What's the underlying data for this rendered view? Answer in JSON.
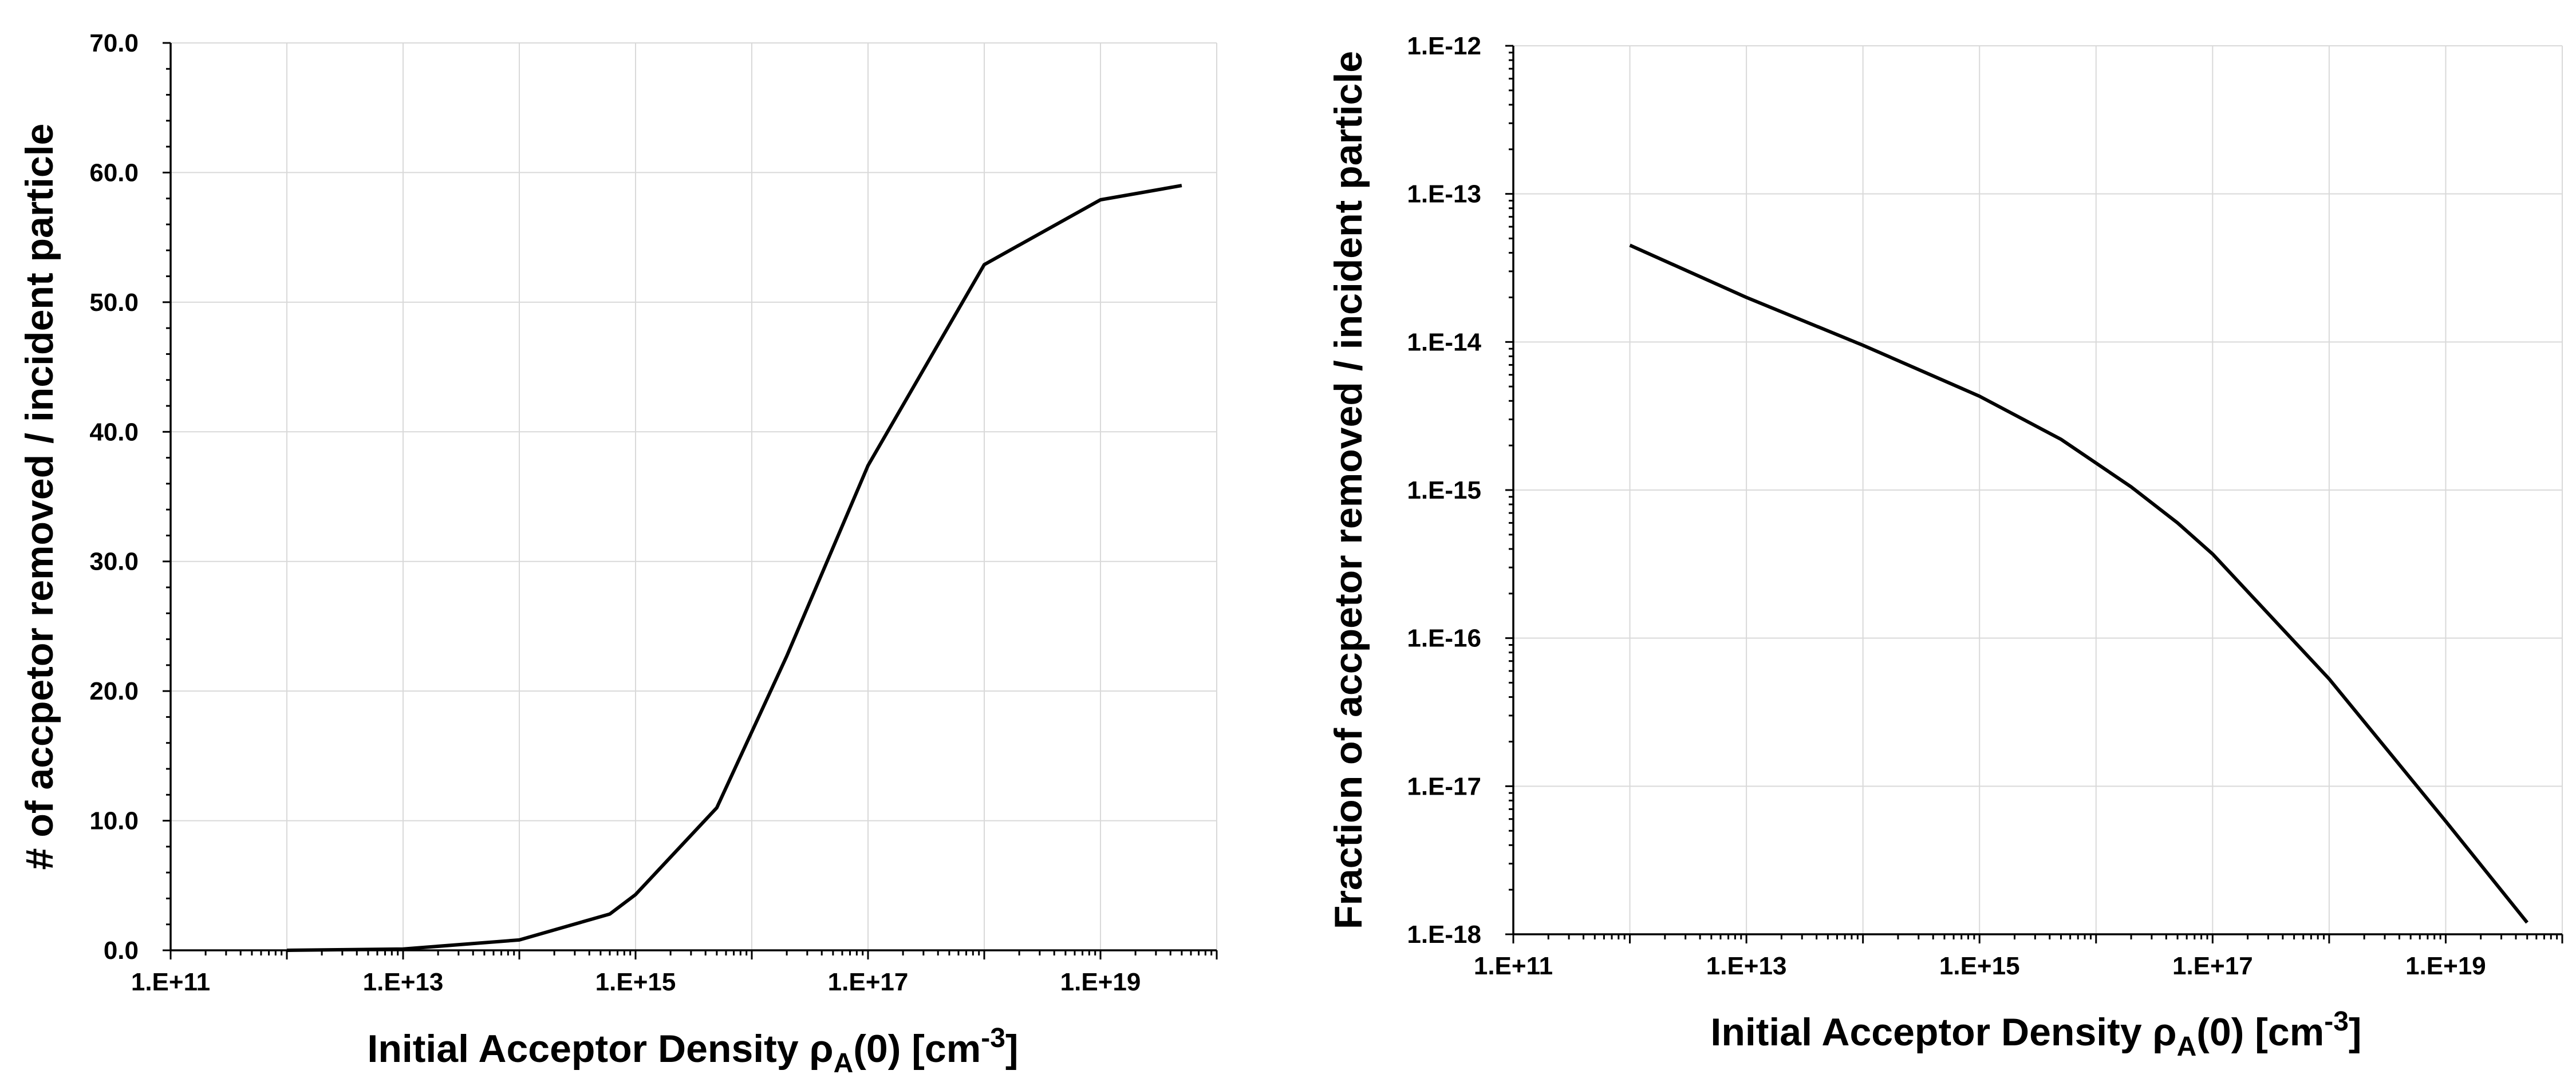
{
  "chart_data": [
    {
      "type": "line",
      "xscale": "log",
      "yscale": "linear",
      "xlim": [
        100000000000.0,
        1e+20
      ],
      "ylim": [
        0,
        70
      ],
      "grid": true,
      "xlabel_parts": {
        "main": "Initial Acceptor Density ρ",
        "sub": "A",
        "mid": "(0)   [cm",
        "sup": "-3",
        "end": "]"
      },
      "ylabel": "# of accpetor removed / incident particle",
      "x_tick_labels": [
        "1.E+11",
        "1.E+13",
        "1.E+15",
        "1.E+17",
        "1.E+19"
      ],
      "y_tick_labels": [
        "0.0",
        "10.0",
        "20.0",
        "30.0",
        "40.0",
        "50.0",
        "60.0",
        "70.0"
      ],
      "series": [
        {
          "x": [
            1000000000000.0,
            10000000000000.0,
            100000000000000.0,
            600000000000000.0,
            1000000000000000.0,
            5000000000000000.0,
            2e+16,
            1e+17,
            1e+18,
            1e+19,
            5e+19
          ],
          "y": [
            0.0,
            0.1,
            0.8,
            2.8,
            4.3,
            11.0,
            22.7,
            37.4,
            52.9,
            57.9,
            59.0
          ]
        }
      ]
    },
    {
      "type": "line",
      "xscale": "log",
      "yscale": "log",
      "xlim": [
        100000000000.0,
        1e+20
      ],
      "ylim": [
        1e-18,
        1e-12
      ],
      "grid": true,
      "xlabel_parts": {
        "main": "Initial Acceptor Density ρ",
        "sub": "A",
        "mid": "(0)   [cm",
        "sup": "-3",
        "end": "]"
      },
      "ylabel": "Fraction  of accpetor removed / incident particle",
      "x_tick_labels": [
        "1.E+11",
        "1.E+13",
        "1.E+15",
        "1.E+17",
        "1.E+19"
      ],
      "y_tick_labels": [
        "1.E-18",
        "1.E-17",
        "1.E-16",
        "1.E-15",
        "1.E-14",
        "1.E-13",
        "1.E-12"
      ],
      "series": [
        {
          "x": [
            1000000000000.0,
            10000000000000.0,
            100000000000000.0,
            1000000000000000.0,
            5000000000000000.0,
            2e+16,
            5e+16,
            1e+17,
            1e+18,
            1e+19,
            5e+19
          ],
          "y": [
            4.5e-14,
            2e-14,
            9.5e-15,
            4.3e-15,
            2.2e-15,
            1.05e-15,
            6e-16,
            3.7e-16,
            5.3e-17,
            5.8e-18,
            1.2e-18
          ]
        }
      ]
    }
  ]
}
